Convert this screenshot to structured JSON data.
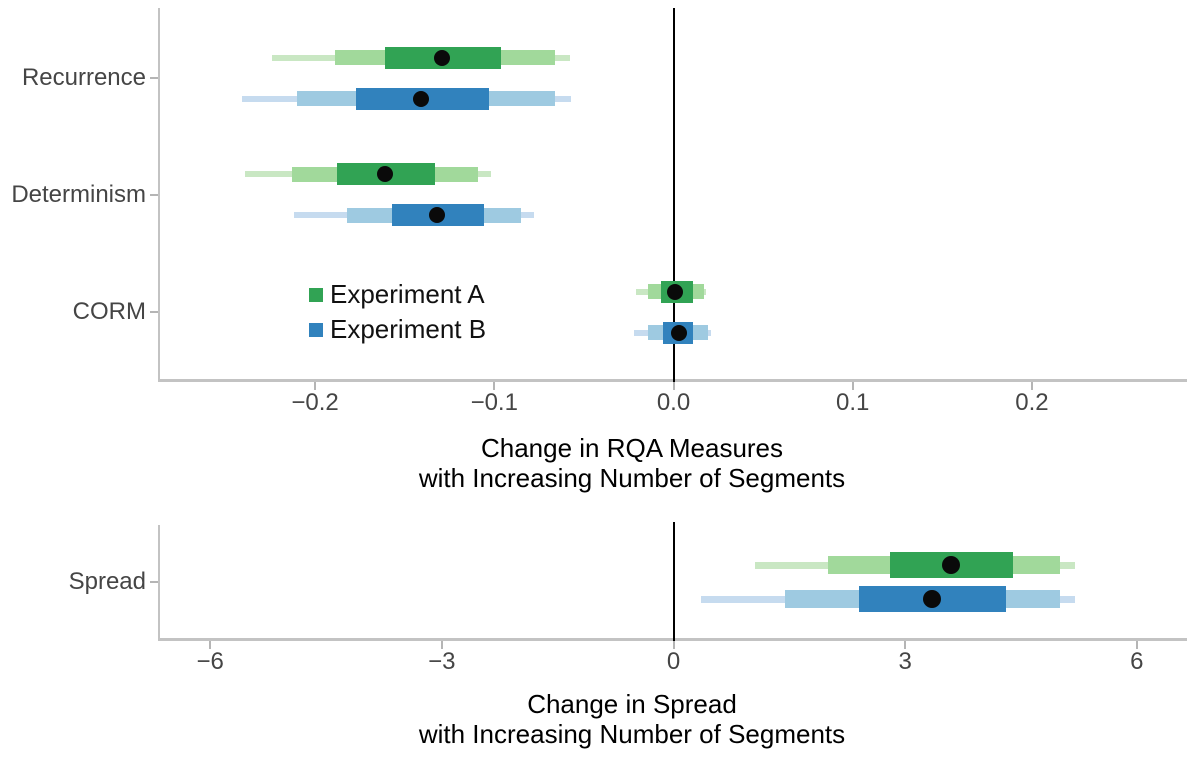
{
  "figure": {
    "background": "#ffffff"
  },
  "legend": {
    "items": [
      {
        "label": "Experiment A",
        "color": "#31a354"
      },
      {
        "label": "Experiment B",
        "color": "#3182bd"
      }
    ]
  },
  "chart_data": [
    {
      "type": "pointinterval",
      "orientation": "horizontal",
      "xlabel_lines": [
        "Change in RQA Measures",
        "with Increasing Number of Segments"
      ],
      "categories": [
        "Recurrence",
        "Determinism",
        "CORM"
      ],
      "x_ticks": [
        -0.2,
        -0.1,
        0,
        0.1,
        0.2
      ],
      "x_tick_labels": [
        "−0.2",
        "−0.1",
        "0.0",
        "0.1",
        "0.2"
      ],
      "xlim": [
        -0.2865,
        0.2865
      ],
      "ref_line": 0,
      "grid": false,
      "interval_levels": [
        "95%",
        "80%",
        "50%"
      ],
      "series": [
        {
          "name": "Experiment A",
          "colors": {
            "ci95": "#c9e7c3",
            "ci80": "#a1d99b",
            "ci50": "#31a354"
          },
          "data": [
            {
              "category": "Recurrence",
              "ci95": [
                -0.224,
                -0.058
              ],
              "ci80": [
                -0.189,
                -0.066
              ],
              "ci50": [
                -0.161,
                -0.096
              ],
              "median": -0.129
            },
            {
              "category": "Determinism",
              "ci95": [
                -0.239,
                -0.102
              ],
              "ci80": [
                -0.213,
                -0.109
              ],
              "ci50": [
                -0.188,
                -0.133
              ],
              "median": -0.161
            },
            {
              "category": "CORM",
              "ci95": [
                -0.021,
                0.018
              ],
              "ci80": [
                -0.014,
                0.017
              ],
              "ci50": [
                -0.007,
                0.011
              ],
              "median": 0.001
            }
          ]
        },
        {
          "name": "Experiment B",
          "colors": {
            "ci95": "#c6dbef",
            "ci80": "#9ecae1",
            "ci50": "#3182bd"
          },
          "data": [
            {
              "category": "Recurrence",
              "ci95": [
                -0.241,
                -0.057
              ],
              "ci80": [
                -0.21,
                -0.066
              ],
              "ci50": [
                -0.177,
                -0.103
              ],
              "median": -0.141
            },
            {
              "category": "Determinism",
              "ci95": [
                -0.212,
                -0.078
              ],
              "ci80": [
                -0.182,
                -0.085
              ],
              "ci50": [
                -0.157,
                -0.106
              ],
              "median": -0.132
            },
            {
              "category": "CORM",
              "ci95": [
                -0.022,
                0.021
              ],
              "ci80": [
                -0.014,
                0.019
              ],
              "ci50": [
                -0.006,
                0.011
              ],
              "median": 0.003
            }
          ]
        }
      ]
    },
    {
      "type": "pointinterval",
      "orientation": "horizontal",
      "xlabel_lines": [
        "Change in Spread",
        "with Increasing Number of Segments"
      ],
      "categories": [
        "Spread"
      ],
      "x_ticks": [
        -6,
        -3,
        0,
        3,
        6
      ],
      "x_tick_labels": [
        "−6",
        "−3",
        "0",
        "3",
        "6"
      ],
      "xlim": [
        -6.65,
        6.65
      ],
      "ref_line": 0,
      "grid": false,
      "interval_levels": [
        "95%",
        "80%",
        "50%"
      ],
      "series": [
        {
          "name": "Experiment A",
          "colors": {
            "ci95": "#c9e7c3",
            "ci80": "#a1d99b",
            "ci50": "#31a354"
          },
          "data": [
            {
              "category": "Spread",
              "ci95": [
                1.05,
                5.2
              ],
              "ci80": [
                2.0,
                5.0
              ],
              "ci50": [
                2.8,
                4.4
              ],
              "median": 3.6
            }
          ]
        },
        {
          "name": "Experiment B",
          "colors": {
            "ci95": "#c6dbef",
            "ci80": "#9ecae1",
            "ci50": "#3182bd"
          },
          "data": [
            {
              "category": "Spread",
              "ci95": [
                0.35,
                5.2
              ],
              "ci80": [
                1.45,
                5.0
              ],
              "ci50": [
                2.4,
                4.3
              ],
              "median": 3.35
            }
          ]
        }
      ]
    }
  ]
}
